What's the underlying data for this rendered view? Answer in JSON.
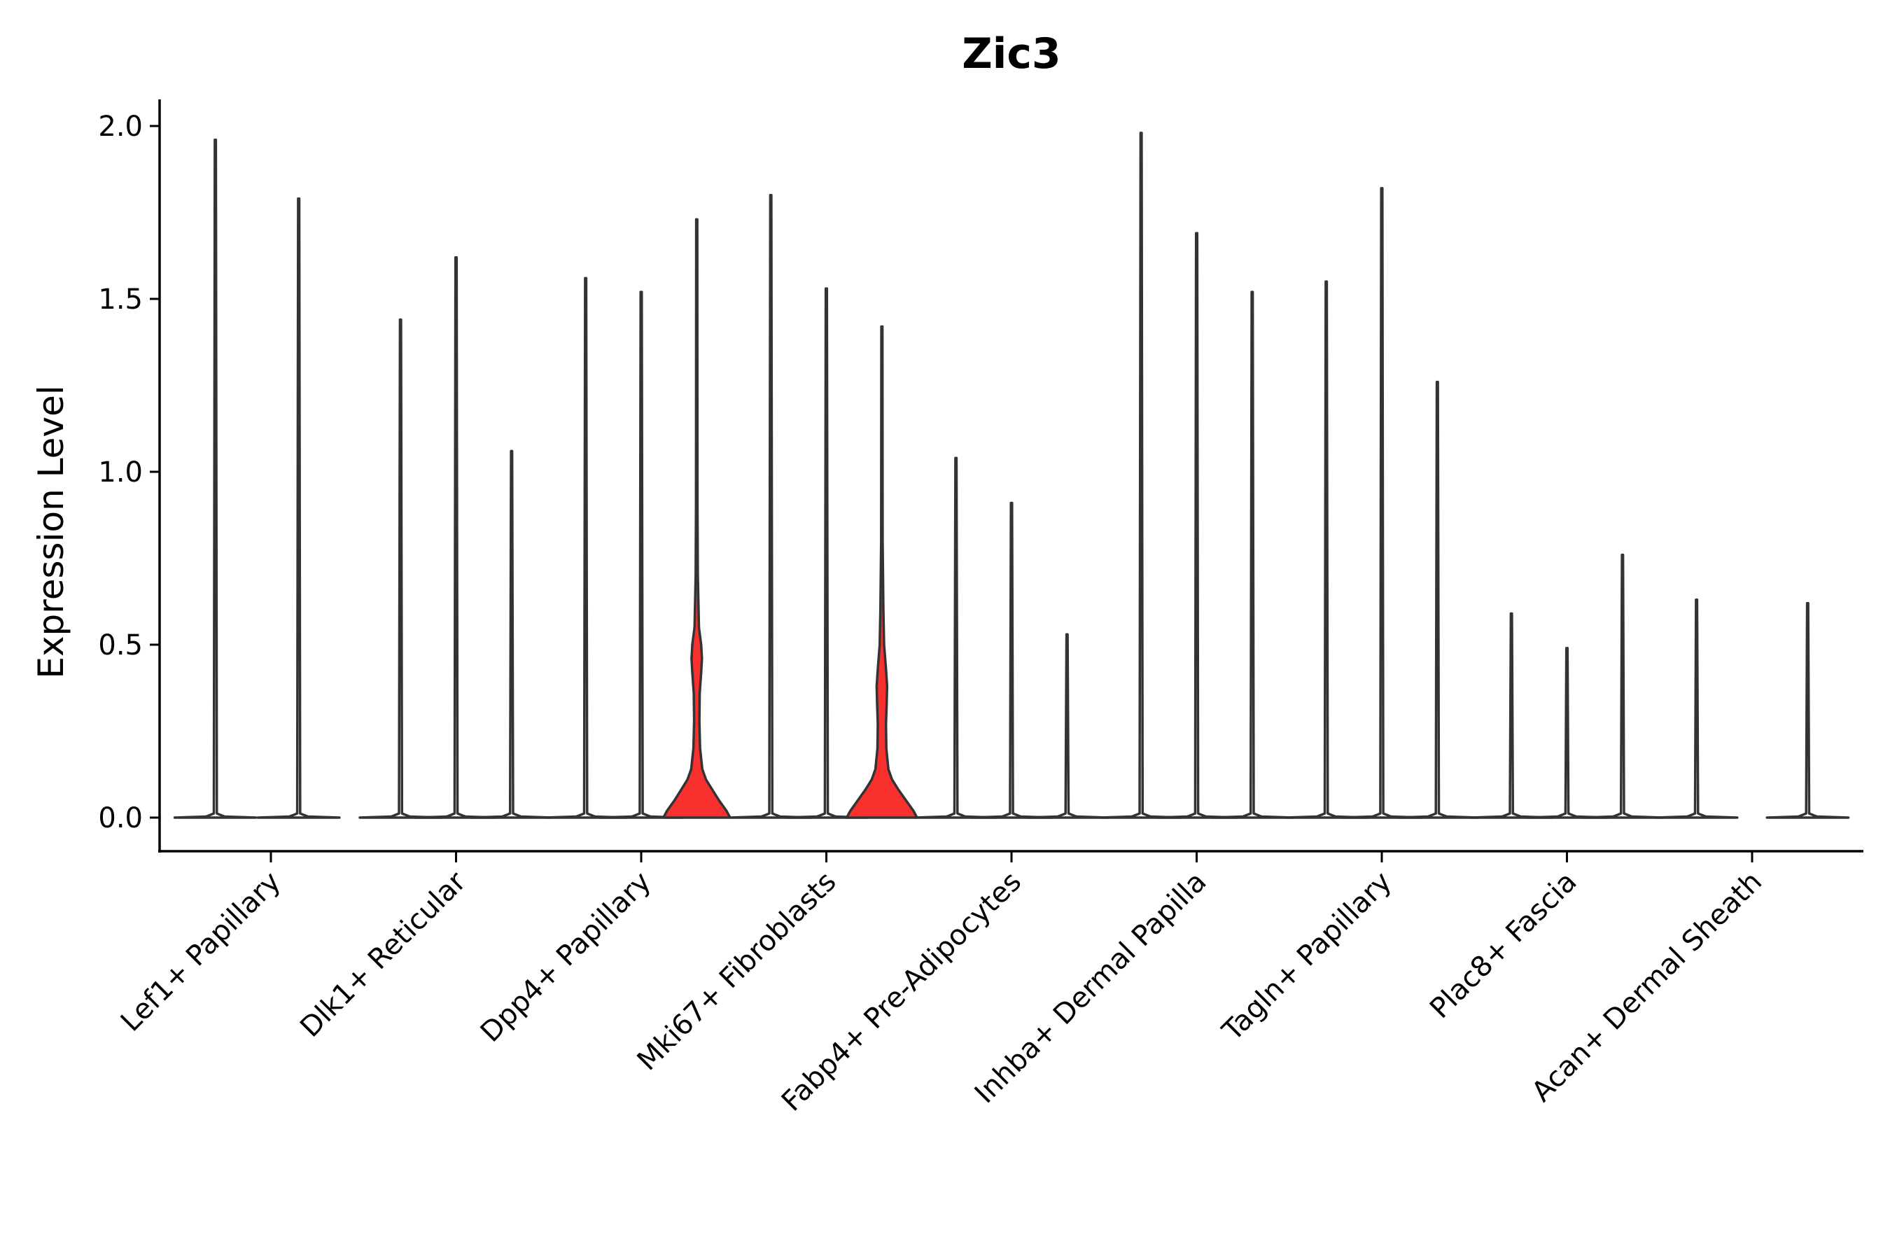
{
  "chart_data": {
    "type": "violin",
    "title": "Zic3",
    "xlabel": "",
    "ylabel": "Expression Level",
    "ylim": [
      -0.1,
      2.08
    ],
    "yticks": [
      "0.0",
      "0.5",
      "1.0",
      "1.5",
      "2.0"
    ],
    "categories": [
      "Lef1+ Papillary",
      "Dlk1+ Reticular",
      "Dpp4+ Papillary",
      "Mki67+ Fibroblasts",
      "Fabp4+ Pre-Adipocytes",
      "Inhba+ Dermal Papilla",
      "Tagln+ Papillary",
      "Plac8+ Fascia",
      "Acan+ Dermal Sheath"
    ],
    "highlight_color": "#f8312f",
    "default_color": "#ffffff",
    "violins": [
      {
        "pos": 0.7,
        "max": 1.96,
        "fill": "#ffffff",
        "shape": "spike"
      },
      {
        "pos": 1.15,
        "max": 1.79,
        "fill": "#ffffff",
        "shape": "spike"
      },
      {
        "pos": 1.7,
        "max": 1.44,
        "fill": "#ffffff",
        "shape": "spike"
      },
      {
        "pos": 2.0,
        "max": 1.62,
        "fill": "#ffffff",
        "shape": "spike"
      },
      {
        "pos": 2.3,
        "max": 1.06,
        "fill": "#ffffff",
        "shape": "spike"
      },
      {
        "pos": 2.7,
        "max": 1.56,
        "fill": "#ffffff",
        "shape": "spike"
      },
      {
        "pos": 3.0,
        "max": 1.52,
        "fill": "#ffffff",
        "shape": "spike"
      },
      {
        "pos": 3.3,
        "max": 1.73,
        "fill": "#f8312f",
        "shape": "bulb_high"
      },
      {
        "pos": 3.7,
        "max": 1.8,
        "fill": "#ffffff",
        "shape": "spike"
      },
      {
        "pos": 4.0,
        "max": 1.53,
        "fill": "#ffffff",
        "shape": "spike"
      },
      {
        "pos": 4.3,
        "max": 1.42,
        "fill": "#f8312f",
        "shape": "bulb_mid"
      },
      {
        "pos": 4.7,
        "max": 1.04,
        "fill": "#ffffff",
        "shape": "spike"
      },
      {
        "pos": 5.0,
        "max": 0.91,
        "fill": "#ffffff",
        "shape": "spike"
      },
      {
        "pos": 5.3,
        "max": 0.53,
        "fill": "#ffffff",
        "shape": "spike"
      },
      {
        "pos": 5.7,
        "max": 1.98,
        "fill": "#ffffff",
        "shape": "spike"
      },
      {
        "pos": 6.0,
        "max": 1.69,
        "fill": "#ffffff",
        "shape": "spike"
      },
      {
        "pos": 6.3,
        "max": 1.52,
        "fill": "#ffffff",
        "shape": "spike"
      },
      {
        "pos": 6.7,
        "max": 1.55,
        "fill": "#ffffff",
        "shape": "spike"
      },
      {
        "pos": 7.0,
        "max": 1.82,
        "fill": "#ffffff",
        "shape": "spike"
      },
      {
        "pos": 7.3,
        "max": 1.26,
        "fill": "#ffffff",
        "shape": "spike"
      },
      {
        "pos": 7.7,
        "max": 0.59,
        "fill": "#ffffff",
        "shape": "spike"
      },
      {
        "pos": 8.0,
        "max": 0.49,
        "fill": "#ffffff",
        "shape": "spike"
      },
      {
        "pos": 8.3,
        "max": 0.76,
        "fill": "#ffffff",
        "shape": "spike"
      },
      {
        "pos": 8.7,
        "max": 0.63,
        "fill": "#ffffff",
        "shape": "spike"
      },
      {
        "pos": 9.3,
        "max": 0.62,
        "fill": "#ffffff",
        "shape": "spike"
      }
    ]
  }
}
